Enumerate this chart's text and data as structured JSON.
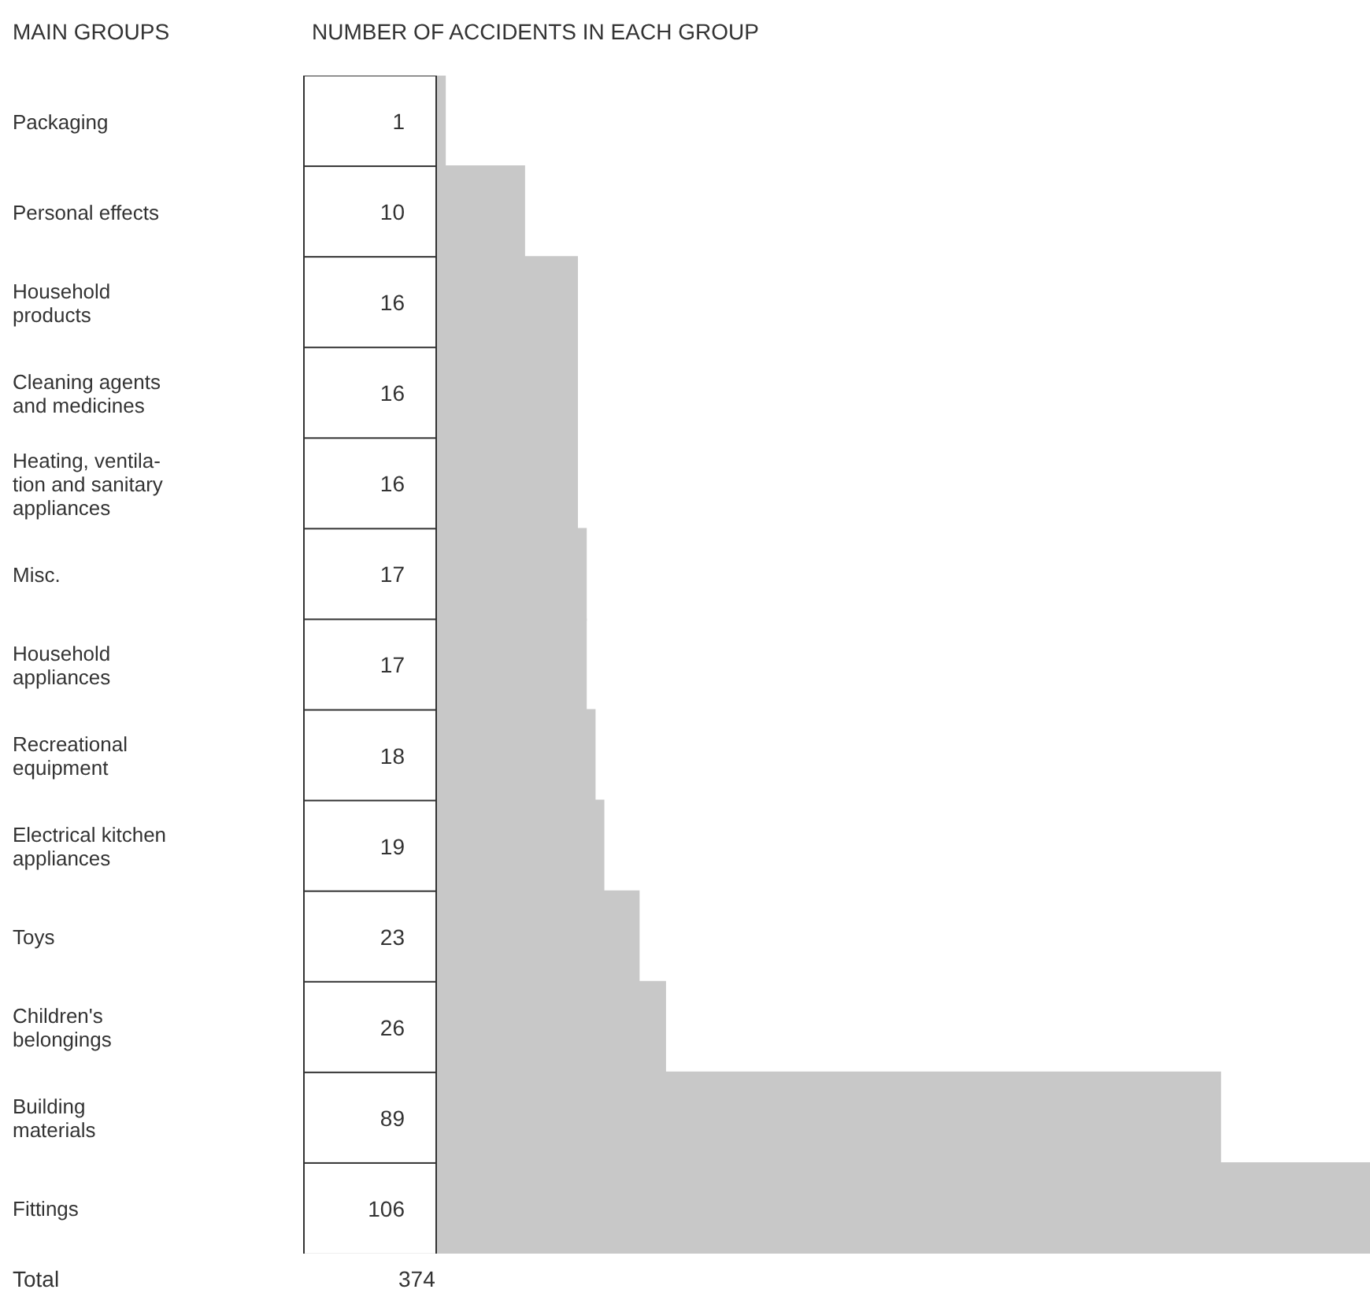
{
  "chart_data": {
    "type": "bar",
    "orientation": "horizontal",
    "title": "NUMBER OF ACCIDENTS IN EACH GROUP",
    "ylabel": "MAIN GROUPS",
    "categories": [
      "Packaging",
      "Personal effects",
      "Household\nproducts",
      "Cleaning agents\nand medicines",
      "Heating, ventila-\ntion and sanitary\nappliances",
      "Misc.",
      "Household\nappliances",
      "Recreational\nequipment",
      "Electrical kitchen\nappliances",
      "Toys",
      "Children's\nbelongings",
      "Building\nmaterials",
      "Fittings"
    ],
    "values": [
      1,
      10,
      16,
      16,
      16,
      17,
      17,
      18,
      19,
      23,
      26,
      89,
      106
    ],
    "color": "#c8c8c8",
    "data_labels": true,
    "annotations": [
      "Total",
      "374"
    ]
  }
}
